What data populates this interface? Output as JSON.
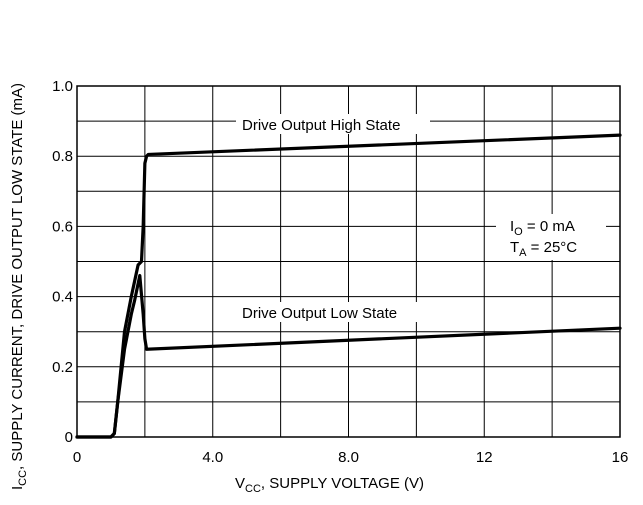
{
  "chart_data": {
    "type": "line",
    "title": "",
    "xlabel": {
      "main": "V",
      "sub": "CC",
      "rest": ", SUPPLY VOLTAGE (V)"
    },
    "ylabel": {
      "main": "I",
      "sub": "CC",
      "rest": ", SUPPLY CURRENT, DRIVE OUTPUT LOW STATE (mA)"
    },
    "xlim": [
      0,
      16
    ],
    "ylim": [
      0,
      1.0
    ],
    "x_ticks": [
      {
        "value": 0,
        "label": "0"
      },
      {
        "value": 4,
        "label": "4.0"
      },
      {
        "value": 8,
        "label": "8.0"
      },
      {
        "value": 12,
        "label": "12"
      },
      {
        "value": 16,
        "label": "16"
      }
    ],
    "y_ticks": [
      {
        "value": 0,
        "label": "0"
      },
      {
        "value": 0.2,
        "label": "0.2"
      },
      {
        "value": 0.4,
        "label": "0.4"
      },
      {
        "value": 0.6,
        "label": "0.6"
      },
      {
        "value": 0.8,
        "label": "0.8"
      },
      {
        "value": 1.0,
        "label": "1.0"
      }
    ],
    "x_grid_step": 2,
    "y_grid_step": 0.1,
    "grid": true,
    "series": [
      {
        "name": "Drive Output High State",
        "x": [
          0,
          1.0,
          1.1,
          1.2,
          1.4,
          1.6,
          1.8,
          1.9,
          1.95,
          2.0,
          2.05,
          2.1,
          16
        ],
        "y": [
          0,
          0,
          0.01,
          0.1,
          0.3,
          0.4,
          0.49,
          0.5,
          0.6,
          0.78,
          0.8,
          0.805,
          0.86
        ]
      },
      {
        "name": "Drive Output Low State",
        "x": [
          0,
          1.0,
          1.1,
          1.2,
          1.4,
          1.6,
          1.7,
          1.85,
          1.95,
          2.0,
          2.05,
          16
        ],
        "y": [
          0,
          0,
          0.01,
          0.1,
          0.25,
          0.35,
          0.39,
          0.46,
          0.35,
          0.28,
          0.25,
          0.31
        ]
      }
    ],
    "annotations": {
      "io": {
        "main": "I",
        "sub": "O",
        "rest": " = 0 mA"
      },
      "ta": {
        "main": "T",
        "sub": "A",
        "rest": " = 25°C"
      }
    }
  }
}
